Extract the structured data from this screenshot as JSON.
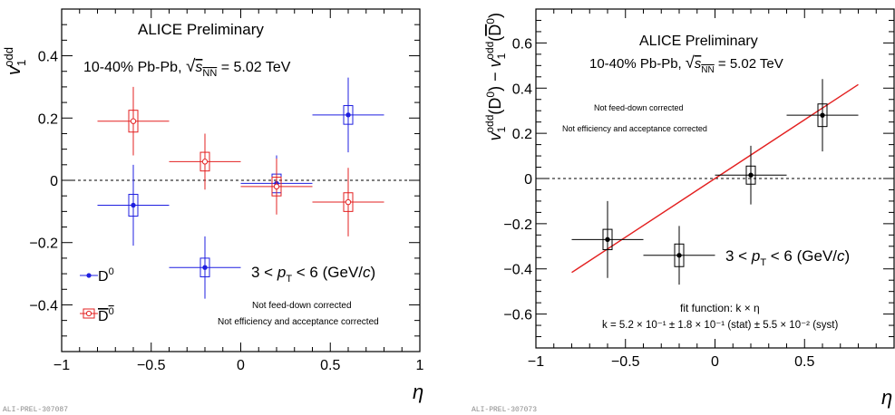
{
  "chart_data": [
    {
      "type": "scatter",
      "title": "ALICE Preliminary",
      "subtitle": "10-40% Pb-Pb, √sNN = 5.02 TeV",
      "text": {
        "title": "ALICE Preliminary",
        "system_prefix": "10-40% Pb-Pb,  ",
        "sqrt": "√",
        "s": "s",
        "nn": "NN",
        "energy": " = 5.02 TeV",
        "pt_prefix": "3 < ",
        "p": "p",
        "T": "T",
        "pt_suffix": " < 6 (GeV/",
        "c": "c",
        "close": ")",
        "note1": "Not feed-down corrected",
        "note2": "Not efficiency and acceptance corrected",
        "ylabel_v": "v",
        "ylabel_sup": "odd",
        "ylabel_sub": "1",
        "xlabel": "η",
        "watermark": "ALI-PREL-307087"
      },
      "xlim": [
        -1,
        1
      ],
      "ylim": [
        -0.55,
        0.55
      ],
      "xticks": [
        "−1",
        "−0.5",
        "0",
        "0.5",
        "1"
      ],
      "xtick_values": [
        -1,
        -0.5,
        0,
        0.5,
        1
      ],
      "yticks": [
        "−0.4",
        "−0.2",
        "0",
        "0.2",
        "0.4"
      ],
      "ytick_values": [
        -0.4,
        -0.2,
        0,
        0.2,
        0.4
      ],
      "reference_line_y": 0,
      "legend": {
        "placement": "bottom-left",
        "entries": [
          {
            "label": "D",
            "sup": "0",
            "bar": false
          },
          {
            "label": "D",
            "sup": "0",
            "bar": true
          }
        ]
      },
      "series": [
        {
          "name": "D0",
          "color": "#1f1fe0",
          "marker": "filled",
          "points": [
            {
              "x": -0.6,
              "y": -0.08,
              "xerr": 0.2,
              "yerr": 0.13,
              "sys": 0.035
            },
            {
              "x": -0.2,
              "y": -0.28,
              "xerr": 0.2,
              "yerr": 0.1,
              "sys": 0.03
            },
            {
              "x": 0.2,
              "y": -0.01,
              "xerr": 0.2,
              "yerr": 0.09,
              "sys": 0.03
            },
            {
              "x": 0.6,
              "y": 0.21,
              "xerr": 0.2,
              "yerr": 0.12,
              "sys": 0.03
            }
          ]
        },
        {
          "name": "anti-D0",
          "color": "#e32020",
          "marker": "open",
          "points": [
            {
              "x": -0.6,
              "y": 0.19,
              "xerr": 0.2,
              "yerr": 0.11,
              "sys": 0.035
            },
            {
              "x": -0.2,
              "y": 0.06,
              "xerr": 0.2,
              "yerr": 0.09,
              "sys": 0.03
            },
            {
              "x": 0.2,
              "y": -0.02,
              "xerr": 0.2,
              "yerr": 0.09,
              "sys": 0.03
            },
            {
              "x": 0.6,
              "y": -0.07,
              "xerr": 0.2,
              "yerr": 0.11,
              "sys": 0.03
            }
          ]
        }
      ]
    },
    {
      "type": "scatter",
      "title": "ALICE Preliminary",
      "subtitle": "10-40% Pb-Pb, √sNN = 5.02 TeV",
      "text": {
        "title": "ALICE Preliminary",
        "system_prefix": "10-40% Pb-Pb,  ",
        "sqrt": "√",
        "s": "s",
        "nn": "NN",
        "energy": " = 5.02 TeV",
        "pt_prefix": "3 < ",
        "p": "p",
        "T": "T",
        "pt_suffix": " < 6 (GeV/",
        "c": "c",
        "close": ")",
        "note1": "Not feed-down corrected",
        "note2": "Not efficiency and acceptance corrected",
        "fit_function": "fit function: k × η",
        "fit_result": "k = 5.2 × 10⁻¹ ± 1.8 × 10⁻¹ (stat) ± 5.5 × 10⁻² (syst)",
        "ylabel_v": "v",
        "ylabel_sup": "odd",
        "ylabel_sub": "1",
        "ylabel_mid1": "(D",
        "ylabel_zero": "0",
        "ylabel_mid2": ") − ",
        "ylabel_mid3": "(",
        "ylabel_dbar": "D",
        "ylabel_end": ")",
        "xlabel": "η",
        "watermark": "ALI-PREL-307073"
      },
      "xlim": [
        -1,
        1
      ],
      "ylim": [
        -0.75,
        0.75
      ],
      "xticks": [
        "−1",
        "−0.5",
        "0",
        "0.5"
      ],
      "xtick_values": [
        -1,
        -0.5,
        0,
        0.5
      ],
      "yticks": [
        "−0.6",
        "−0.4",
        "−0.2",
        "0",
        "0.2",
        "0.4",
        "0.6"
      ],
      "ytick_values": [
        -0.6,
        -0.4,
        -0.2,
        0,
        0.2,
        0.4,
        0.6
      ],
      "reference_line_y": 0,
      "fit": {
        "slope": 0.52,
        "x_range": [
          -0.8,
          0.8
        ],
        "color": "#e32020"
      },
      "series": [
        {
          "name": "difference",
          "color": "#000000",
          "marker": "filled",
          "points": [
            {
              "x": -0.6,
              "y": -0.27,
              "xerr": 0.2,
              "yerr": 0.17,
              "sys": 0.045
            },
            {
              "x": -0.2,
              "y": -0.34,
              "xerr": 0.2,
              "yerr": 0.13,
              "sys": 0.05
            },
            {
              "x": 0.2,
              "y": 0.015,
              "xerr": 0.2,
              "yerr": 0.13,
              "sys": 0.04
            },
            {
              "x": 0.6,
              "y": 0.28,
              "xerr": 0.2,
              "yerr": 0.16,
              "sys": 0.05
            }
          ]
        }
      ]
    }
  ]
}
